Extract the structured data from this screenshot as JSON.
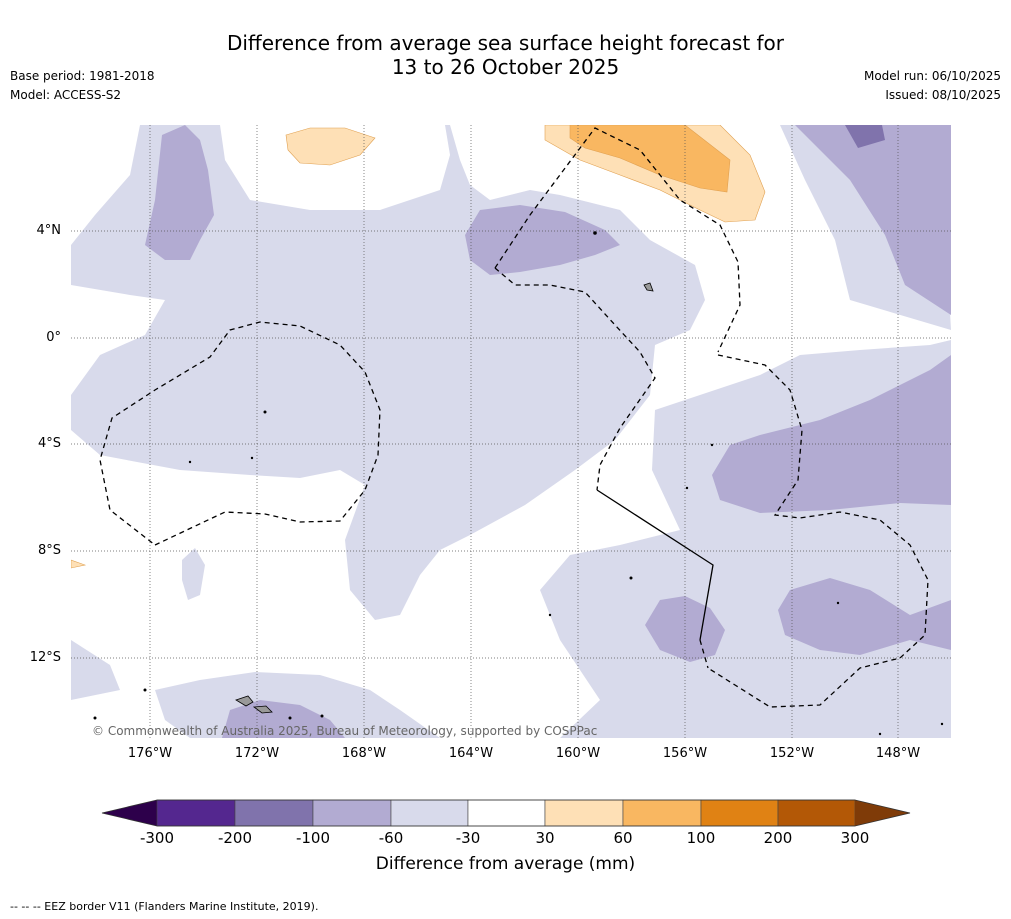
{
  "title_line1": "Difference from average sea surface height forecast for",
  "title_line2": "13 to 26 October 2025",
  "left_meta": [
    "Base period: 1981-2018",
    "Model: ACCESS-S2"
  ],
  "right_meta": [
    "Model run: 06/10/2025",
    "Issued: 08/10/2025"
  ],
  "lat_labels": [
    "4°N",
    "0°",
    "4°S",
    "8°S",
    "12°S"
  ],
  "lon_labels": [
    "176°W",
    "172°W",
    "168°W",
    "164°W",
    "160°W",
    "156°W",
    "152°W",
    "148°W"
  ],
  "copyright": "© Commonwealth of Australia 2025, Bureau of Meteorology, supported by COSPPac",
  "colorbar": {
    "title": "Difference from average (mm)",
    "ticks": [
      "-300",
      "-200",
      "-100",
      "-60",
      "-30",
      "30",
      "60",
      "100",
      "200",
      "300"
    ],
    "colors": [
      "#54278f",
      "#8073ac",
      "#b2abd2",
      "#d8daeb",
      "#ffffff",
      "#fee0b6",
      "#f9b761",
      "#e08214",
      "#b35806"
    ],
    "extend_low_color": "#2d004b",
    "extend_high_color": "#7f3b08"
  },
  "palette": {
    "neg30": "#d8daeb",
    "neg60": "#b2abd2",
    "neg100": "#8073ac",
    "pos30": "#fee0b6",
    "pos60": "#f9b761"
  },
  "footnote": "-- -- -- EEZ border V11 (Flanders Marine Institute, 2019)."
}
